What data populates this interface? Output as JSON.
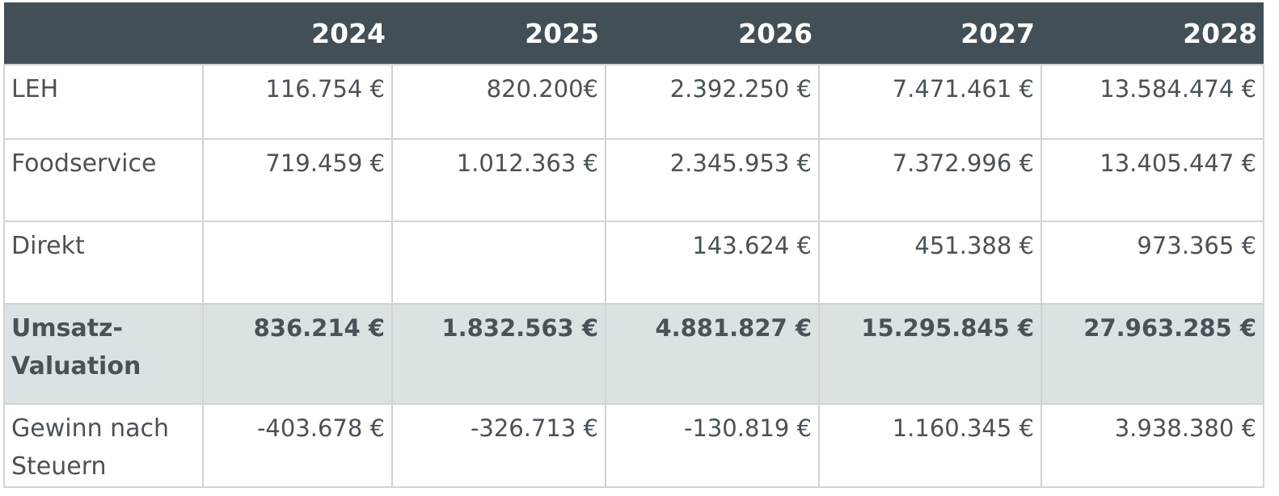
{
  "table": {
    "headers": [
      "",
      "2024",
      "2025",
      "2026",
      "2027",
      "2028"
    ],
    "rows": [
      {
        "label": "LEH",
        "values": [
          "116.754 €",
          "820.200€",
          "2.392.250 €",
          "7.471.461 €",
          "13.584.474 €"
        ]
      },
      {
        "label": "Foodservice",
        "values": [
          "719.459 €",
          "1.012.363 €",
          "2.345.953 €",
          "7.372.996 €",
          "13.405.447 €"
        ]
      },
      {
        "label": "Direkt",
        "values": [
          "",
          "",
          "143.624 €",
          "451.388 €",
          "973.365 €"
        ]
      },
      {
        "label": "Umsatz-Valuation",
        "values": [
          "836.214 €",
          "1.832.563 €",
          "4.881.827 €",
          "15.295.845 €",
          "27.963.285 €"
        ]
      },
      {
        "label": "Gewinn nach Steuern",
        "values": [
          "-403.678 €",
          "-326.713 €",
          "-130.819 €",
          "1.160.345 €",
          "3.938.380 €"
        ]
      }
    ]
  },
  "colors": {
    "header_bg": "#434f56",
    "header_text": "#ffffff",
    "highlight_row_bg": "#dbe2e4",
    "text": "#4a5258",
    "grid": "#d3d3d3"
  }
}
